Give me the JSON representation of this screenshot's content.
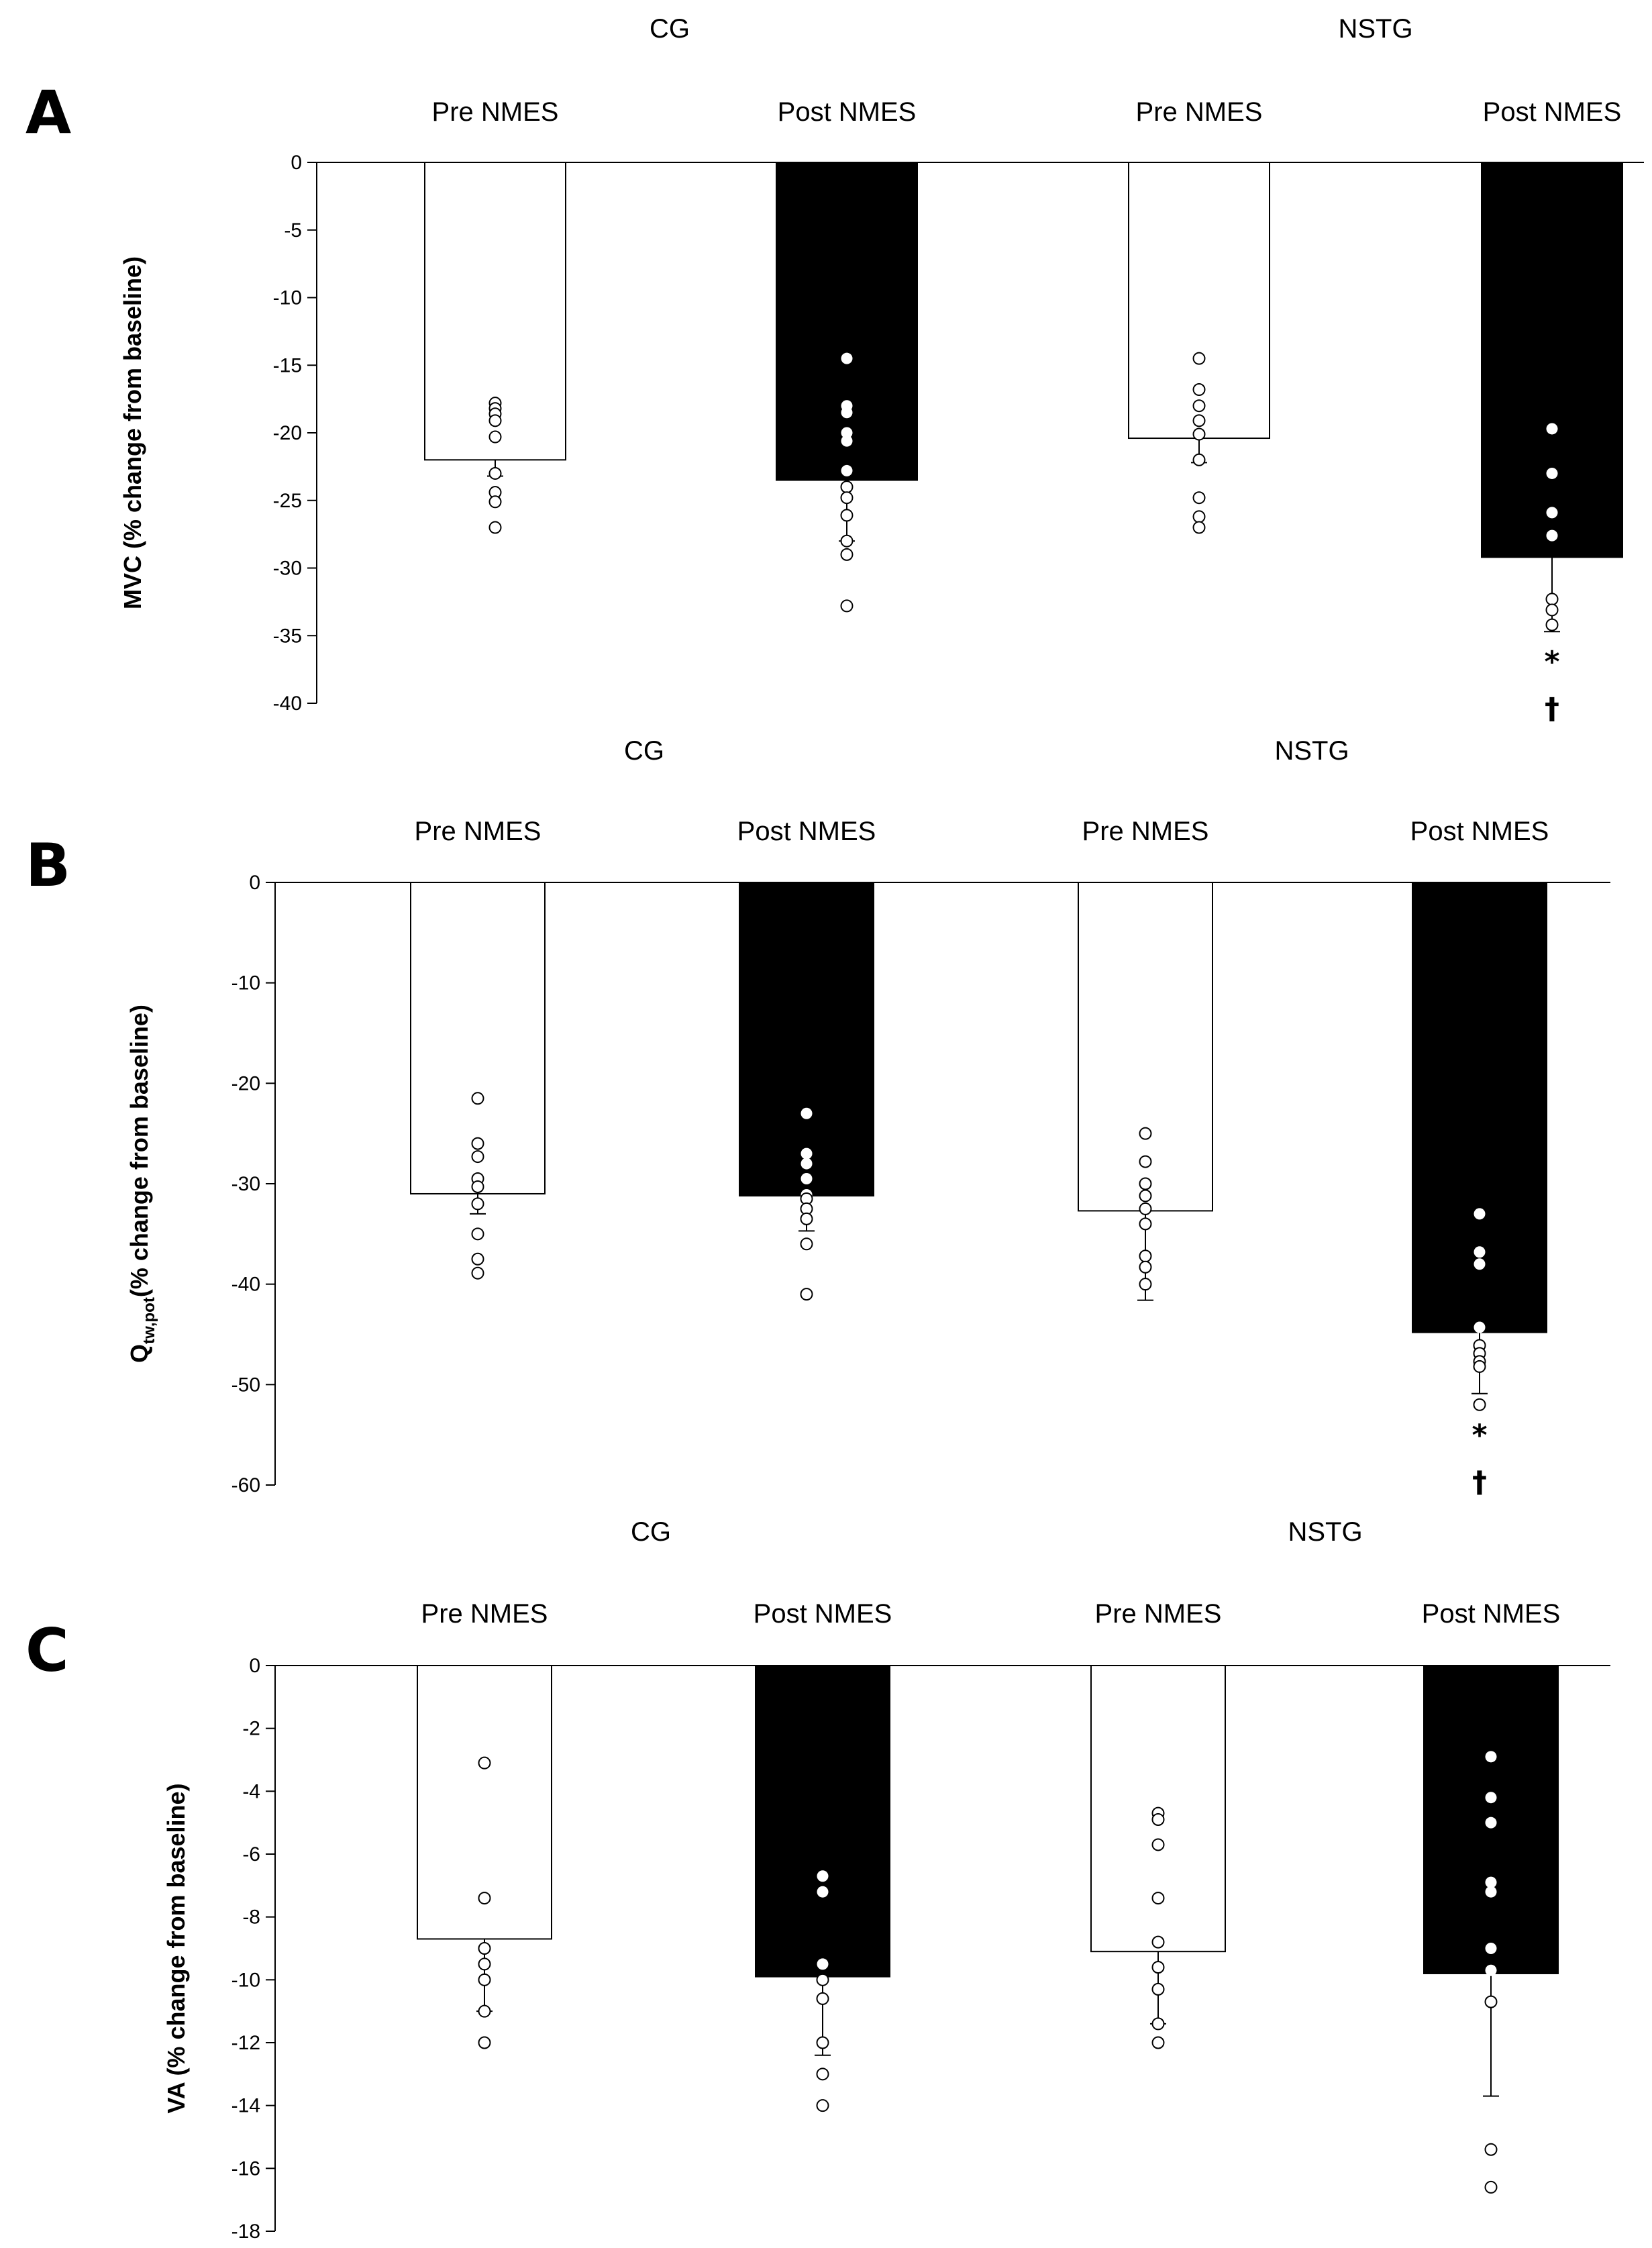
{
  "chart_data": [
    {
      "type": "bar",
      "panel": "A",
      "groups": [
        "CG",
        "NSTG"
      ],
      "categories": [
        "Pre NMES",
        "Post NMES",
        "Pre NMES",
        "Post NMES"
      ],
      "group_of_category": [
        0,
        0,
        1,
        1
      ],
      "bar_fill": [
        "#ffffff",
        "#000000",
        "#ffffff",
        "#000000"
      ],
      "values": [
        -22.0,
        -23.5,
        -20.4,
        -29.2
      ],
      "error": [
        1.2,
        4.5,
        1.8,
        5.5
      ],
      "points": [
        [
          -17.8,
          -18.2,
          -18.6,
          -19.1,
          -20.3,
          -23.0,
          -24.4,
          -25.1,
          -27.0
        ],
        [
          -14.5,
          -18.0,
          -18.5,
          -20.0,
          -20.6,
          -22.8,
          -24.0,
          -24.8,
          -26.1,
          -28.0,
          -29.0,
          -32.8
        ],
        [
          -14.5,
          -16.8,
          -18.0,
          -19.1,
          -20.1,
          -22.0,
          -24.8,
          -26.2,
          -27.0
        ],
        [
          -19.7,
          -23.0,
          -25.9,
          -27.6,
          -32.3,
          -33.1,
          -34.2
        ]
      ],
      "significance": [
        [],
        [],
        [],
        [
          "*",
          "†"
        ]
      ],
      "ylabel": "MVC (% change from baseline)",
      "ylim": [
        -40,
        0
      ],
      "yticks": [
        0,
        -5,
        -10,
        -15,
        -20,
        -25,
        -30,
        -35,
        -40
      ],
      "ytick_labels": [
        "0",
        "-5",
        "-10",
        "-15",
        "-20",
        "-25",
        "-30",
        "-35",
        "-40"
      ]
    },
    {
      "type": "bar",
      "panel": "B",
      "groups": [
        "CG",
        "NSTG"
      ],
      "categories": [
        "Pre NMES",
        "Post NMES",
        "Pre NMES",
        "Post NMES"
      ],
      "group_of_category": [
        0,
        0,
        1,
        1
      ],
      "bar_fill": [
        "#ffffff",
        "#000000",
        "#ffffff",
        "#000000"
      ],
      "values": [
        -31.0,
        -31.2,
        -32.7,
        -44.8
      ],
      "error": [
        2.0,
        3.5,
        8.9,
        6.1
      ],
      "points": [
        [
          -21.5,
          -26.0,
          -27.3,
          -29.5,
          -30.3,
          -32.0,
          -35.0,
          -37.5,
          -38.9
        ],
        [
          -23.0,
          -27.0,
          -28.0,
          -29.5,
          -31.1,
          -31.5,
          -32.5,
          -33.5,
          -36.0,
          -41.0
        ],
        [
          -25.0,
          -27.8,
          -30.0,
          -31.2,
          -32.5,
          -34.0,
          -37.2,
          -38.3,
          -40.0
        ],
        [
          -33.0,
          -36.8,
          -38.0,
          -44.3,
          -46.1,
          -46.9,
          -47.7,
          -48.2,
          -52.0
        ]
      ],
      "significance": [
        [],
        [],
        [],
        [
          "*",
          "†"
        ]
      ],
      "ylabel_main": "Q",
      "ylabel_sub": "tw,pot",
      "ylabel_rest": "(% change from baseline)",
      "ylim": [
        -60,
        0
      ],
      "yticks": [
        0,
        -10,
        -20,
        -30,
        -40,
        -50,
        -60
      ],
      "ytick_labels": [
        "0",
        "-10",
        "-20",
        "-30",
        "-40",
        "-50",
        "-60"
      ]
    },
    {
      "type": "bar",
      "panel": "C",
      "groups": [
        "CG",
        "NSTG"
      ],
      "categories": [
        "Pre NMES",
        "Post NMES",
        "Pre NMES",
        "Post NMES"
      ],
      "group_of_category": [
        0,
        0,
        1,
        1
      ],
      "bar_fill": [
        "#ffffff",
        "#000000",
        "#ffffff",
        "#000000"
      ],
      "values": [
        -8.7,
        -9.9,
        -9.1,
        -9.8
      ],
      "error": [
        2.3,
        2.5,
        2.3,
        3.9
      ],
      "points": [
        [
          -3.1,
          -7.4,
          -9.0,
          -9.5,
          -10.0,
          -11.0,
          -12.0
        ],
        [
          -6.7,
          -7.2,
          -9.5,
          -10.0,
          -10.6,
          -12.0,
          -13.0,
          -14.0
        ],
        [
          -4.7,
          -4.9,
          -5.7,
          -7.4,
          -8.8,
          -9.6,
          -10.3,
          -11.4,
          -12.0
        ],
        [
          -2.9,
          -4.2,
          -5.0,
          -6.9,
          -7.2,
          -9.0,
          -9.7,
          -10.7,
          -15.4,
          -16.6
        ]
      ],
      "significance": [
        [],
        [],
        [],
        []
      ],
      "ylabel": "VA (% change from baseline)",
      "ylim": [
        -18,
        0
      ],
      "yticks": [
        0,
        -2,
        -4,
        -6,
        -8,
        -10,
        -12,
        -14,
        -16,
        -18
      ],
      "ytick_labels": [
        "0",
        "-2",
        "-4",
        "-6",
        "-8",
        "-10",
        "-12",
        "-14",
        "-16",
        "-18"
      ]
    }
  ]
}
